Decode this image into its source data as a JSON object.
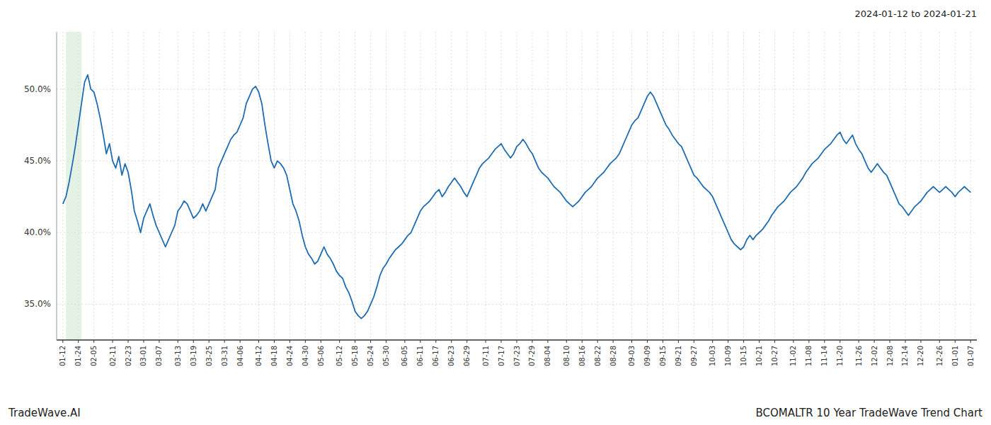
{
  "chart_data": {
    "type": "line",
    "title": "BCOMALTR 10 Year TradeWave Trend Chart",
    "subtitle": "2024-01-12 to 2024-01-21",
    "annotations": [
      "TradeWave.AI"
    ],
    "color": "#1f6cb0",
    "grid": true,
    "shade_start": 1,
    "shade_end": 6,
    "shade_color": "#c8e6c9",
    "xlim": [
      -2,
      294
    ],
    "ylim": [
      0.325,
      0.54
    ],
    "yticks": [
      {
        "value": 0.35,
        "label": "35.0%"
      },
      {
        "value": 0.4,
        "label": "40.0%"
      },
      {
        "value": 0.45,
        "label": "45.0%"
      },
      {
        "value": 0.5,
        "label": "50.0%"
      }
    ],
    "categories": [
      "01-12",
      null,
      null,
      null,
      null,
      "01-24",
      null,
      null,
      null,
      null,
      "02-05",
      null,
      null,
      null,
      null,
      null,
      "02-11",
      null,
      null,
      null,
      null,
      "02-23",
      null,
      null,
      null,
      null,
      "03-01",
      null,
      null,
      null,
      null,
      "03-07",
      null,
      null,
      null,
      null,
      null,
      "03-13",
      null,
      null,
      null,
      null,
      "03-19",
      null,
      null,
      null,
      null,
      "03-25",
      null,
      null,
      null,
      null,
      "03-31",
      null,
      null,
      null,
      null,
      "04-06",
      null,
      null,
      null,
      null,
      null,
      "04-12",
      null,
      null,
      null,
      null,
      "04-18",
      null,
      null,
      null,
      null,
      "04-24",
      null,
      null,
      null,
      null,
      "04-30",
      null,
      null,
      null,
      null,
      "05-06",
      null,
      null,
      null,
      null,
      null,
      "05-12",
      null,
      null,
      null,
      null,
      "05-18",
      null,
      null,
      null,
      null,
      "05-24",
      null,
      null,
      null,
      null,
      "05-30",
      null,
      null,
      null,
      null,
      null,
      "06-05",
      null,
      null,
      null,
      null,
      "06-11",
      null,
      null,
      null,
      null,
      "06-17",
      null,
      null,
      null,
      null,
      "06-23",
      null,
      null,
      null,
      null,
      "06-29",
      null,
      null,
      null,
      null,
      null,
      "07-11",
      null,
      null,
      null,
      null,
      "07-17",
      null,
      null,
      null,
      null,
      "07-23",
      null,
      null,
      null,
      null,
      "07-29",
      null,
      null,
      null,
      null,
      "08-04",
      null,
      null,
      null,
      null,
      null,
      "08-10",
      null,
      null,
      null,
      null,
      "08-16",
      null,
      null,
      null,
      null,
      "08-22",
      null,
      null,
      null,
      null,
      "08-28",
      null,
      null,
      null,
      null,
      null,
      "09-03",
      null,
      null,
      null,
      null,
      "09-09",
      null,
      null,
      null,
      null,
      "09-15",
      null,
      null,
      null,
      null,
      "09-21",
      null,
      null,
      null,
      null,
      "09-27",
      null,
      null,
      null,
      null,
      null,
      "10-03",
      null,
      null,
      null,
      null,
      "10-09",
      null,
      null,
      null,
      null,
      "10-15",
      null,
      null,
      null,
      null,
      "10-21",
      null,
      null,
      null,
      null,
      "10-27",
      null,
      null,
      null,
      null,
      null,
      "11-02",
      null,
      null,
      null,
      null,
      "11-08",
      null,
      null,
      null,
      null,
      "11-14",
      null,
      null,
      null,
      null,
      "11-20",
      null,
      null,
      null,
      null,
      null,
      "11-26",
      null,
      null,
      null,
      null,
      "12-02",
      null,
      null,
      null,
      null,
      "12-08",
      null,
      null,
      null,
      null,
      "12-14",
      null,
      null,
      null,
      null,
      "12-20",
      null,
      null,
      null,
      null,
      null,
      "12-26",
      null,
      null,
      null,
      null,
      "01-01",
      null,
      null,
      null,
      null,
      "01-07"
    ],
    "values": [
      0.42,
      0.425,
      0.435,
      0.447,
      0.46,
      0.475,
      0.49,
      0.505,
      0.51,
      0.5,
      0.498,
      0.49,
      0.48,
      0.468,
      0.455,
      0.462,
      0.45,
      0.445,
      0.453,
      0.44,
      0.448,
      0.442,
      0.43,
      0.415,
      0.408,
      0.4,
      0.41,
      0.415,
      0.42,
      0.412,
      0.405,
      0.4,
      0.395,
      0.39,
      0.395,
      0.4,
      0.405,
      0.415,
      0.418,
      0.422,
      0.42,
      0.415,
      0.41,
      0.412,
      0.415,
      0.42,
      0.415,
      0.42,
      0.425,
      0.43,
      0.445,
      0.45,
      0.455,
      0.46,
      0.465,
      0.468,
      0.47,
      0.475,
      0.48,
      0.49,
      0.495,
      0.5,
      0.502,
      0.498,
      0.49,
      0.475,
      0.462,
      0.45,
      0.445,
      0.45,
      0.448,
      0.445,
      0.44,
      0.43,
      0.42,
      0.415,
      0.408,
      0.398,
      0.39,
      0.385,
      0.382,
      0.378,
      0.38,
      0.385,
      0.39,
      0.385,
      0.382,
      0.378,
      0.373,
      0.37,
      0.368,
      0.362,
      0.358,
      0.352,
      0.345,
      0.342,
      0.34,
      0.342,
      0.345,
      0.35,
      0.355,
      0.362,
      0.37,
      0.375,
      0.378,
      0.382,
      0.385,
      0.388,
      0.39,
      0.392,
      0.395,
      0.398,
      0.4,
      0.405,
      0.41,
      0.415,
      0.418,
      0.42,
      0.422,
      0.425,
      0.428,
      0.43,
      0.425,
      0.428,
      0.432,
      0.435,
      0.438,
      0.435,
      0.432,
      0.428,
      0.425,
      0.43,
      0.435,
      0.44,
      0.445,
      0.448,
      0.45,
      0.452,
      0.455,
      0.458,
      0.46,
      0.462,
      0.458,
      0.455,
      0.452,
      0.455,
      0.46,
      0.462,
      0.465,
      0.462,
      0.458,
      0.455,
      0.45,
      0.445,
      0.442,
      0.44,
      0.438,
      0.435,
      0.432,
      0.43,
      0.428,
      0.425,
      0.422,
      0.42,
      0.418,
      0.42,
      0.422,
      0.425,
      0.428,
      0.43,
      0.432,
      0.435,
      0.438,
      0.44,
      0.442,
      0.445,
      0.448,
      0.45,
      0.452,
      0.455,
      0.46,
      0.465,
      0.47,
      0.475,
      0.478,
      0.48,
      0.485,
      0.49,
      0.495,
      0.498,
      0.495,
      0.49,
      0.485,
      0.48,
      0.475,
      0.472,
      0.468,
      0.465,
      0.462,
      0.46,
      0.455,
      0.45,
      0.445,
      0.44,
      0.438,
      0.435,
      0.432,
      0.43,
      0.428,
      0.425,
      0.42,
      0.415,
      0.41,
      0.405,
      0.4,
      0.395,
      0.392,
      0.39,
      0.388,
      0.39,
      0.395,
      0.398,
      0.395,
      0.398,
      0.4,
      0.402,
      0.405,
      0.408,
      0.412,
      0.415,
      0.418,
      0.42,
      0.422,
      0.425,
      0.428,
      0.43,
      0.432,
      0.435,
      0.438,
      0.442,
      0.445,
      0.448,
      0.45,
      0.452,
      0.455,
      0.458,
      0.46,
      0.462,
      0.465,
      0.468,
      0.47,
      0.465,
      0.462,
      0.465,
      0.468,
      0.462,
      0.458,
      0.455,
      0.45,
      0.445,
      0.442,
      0.445,
      0.448,
      0.445,
      0.442,
      0.44,
      0.435,
      0.43,
      0.425,
      0.42,
      0.418,
      0.415,
      0.412,
      0.415,
      0.418,
      0.42,
      0.422,
      0.425,
      0.428,
      0.43,
      0.432,
      0.43,
      0.428,
      0.43,
      0.432,
      0.43,
      0.428,
      0.425,
      0.428,
      0.43,
      0.432,
      0.43,
      0.428
    ]
  }
}
